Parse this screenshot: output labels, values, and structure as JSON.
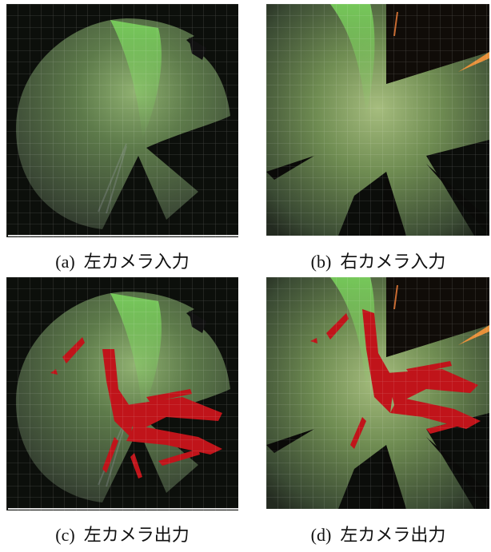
{
  "figure": {
    "panels": [
      {
        "caption": "(a)  左カメラ入力"
      },
      {
        "caption": "(b)  右カメラ入力"
      },
      {
        "caption": "(c)  左カメラ出力"
      },
      {
        "caption": "(d)  左カメラ出力"
      }
    ]
  }
}
